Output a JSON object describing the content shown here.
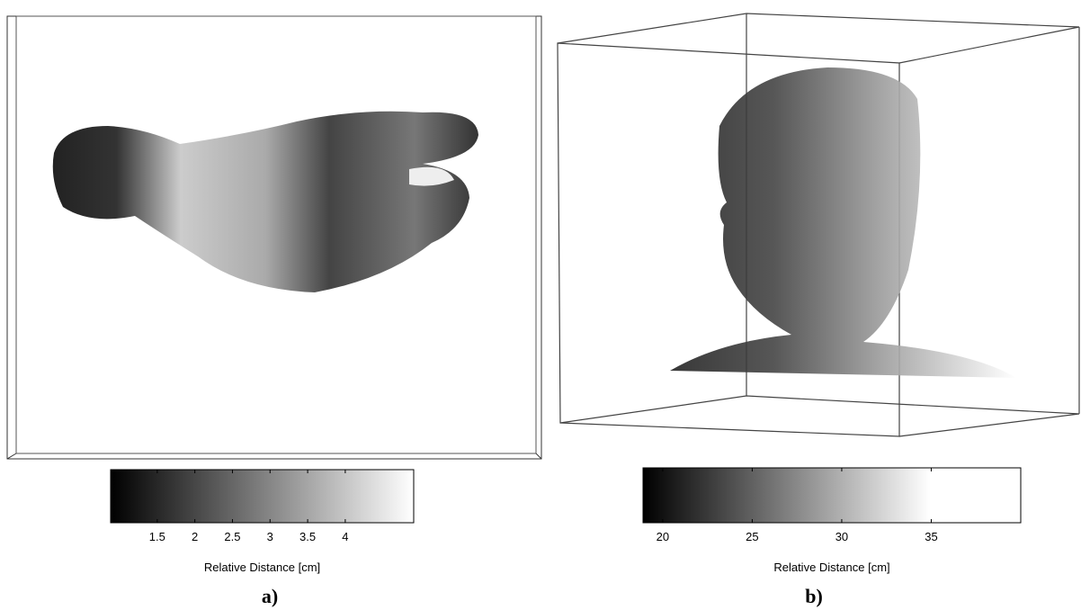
{
  "panels": [
    {
      "caption": "a)",
      "colorbar": {
        "label": "Relative Distance [cm]",
        "lim": [
          0.88,
          4.91
        ],
        "ticks": [
          1.5,
          2,
          2.5,
          3,
          3.5,
          4
        ]
      }
    },
    {
      "caption": "b)",
      "colorbar": {
        "label": "Relative Distance [cm]",
        "lim": [
          18.9,
          40
        ],
        "ticks": [
          20,
          25,
          30,
          35
        ]
      }
    }
  ]
}
